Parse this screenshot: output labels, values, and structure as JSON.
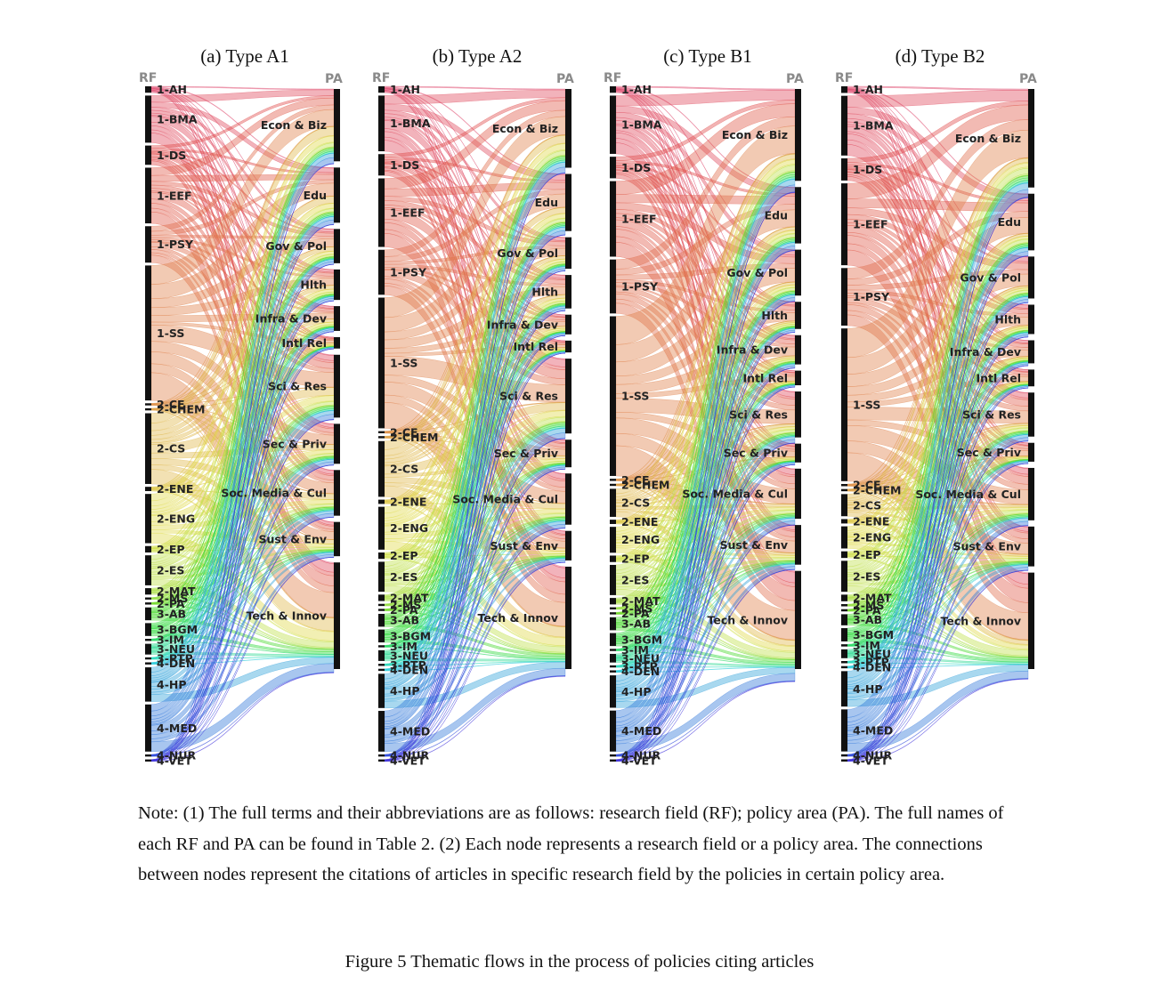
{
  "chart_data": [
    {
      "type": "sankey",
      "title": "(a) Type A1",
      "source_axis": "RF",
      "target_axis": "PA",
      "sources": [
        {
          "label": "1-AH",
          "size": 3
        },
        {
          "label": "1-BMA",
          "size": 22
        },
        {
          "label": "1-DS",
          "size": 9
        },
        {
          "label": "1-EEF",
          "size": 26
        },
        {
          "label": "1-PSY",
          "size": 17
        },
        {
          "label": "1-SS",
          "size": 63
        },
        {
          "label": "2-CE",
          "size": 1
        },
        {
          "label": "2-CHEM",
          "size": 1
        },
        {
          "label": "2-CS",
          "size": 33
        },
        {
          "label": "2-ENE",
          "size": 2
        },
        {
          "label": "2-ENG",
          "size": 23
        },
        {
          "label": "2-EP",
          "size": 3
        },
        {
          "label": "2-ES",
          "size": 14
        },
        {
          "label": "2-MAT",
          "size": 3
        },
        {
          "label": "2-MS",
          "size": 1
        },
        {
          "label": "2-PA",
          "size": 1
        },
        {
          "label": "3-AB",
          "size": 6
        },
        {
          "label": "3-BGM",
          "size": 6
        },
        {
          "label": "3-IM",
          "size": 1
        },
        {
          "label": "3-NEU",
          "size": 5
        },
        {
          "label": "3-PTP",
          "size": 1
        },
        {
          "label": "4-DEN",
          "size": 1
        },
        {
          "label": "4-HP",
          "size": 16
        },
        {
          "label": "4-MED",
          "size": 22
        },
        {
          "label": "4-NUR",
          "size": 1
        },
        {
          "label": "4-VET",
          "size": 1
        }
      ],
      "targets": [
        {
          "label": "Econ & Biz",
          "size": 38
        },
        {
          "label": "Edu",
          "size": 29
        },
        {
          "label": "Gov & Pol",
          "size": 18
        },
        {
          "label": "Hlth",
          "size": 16
        },
        {
          "label": "Infra & Dev",
          "size": 13
        },
        {
          "label": "Intl Rel",
          "size": 6
        },
        {
          "label": "Sci & Res",
          "size": 33
        },
        {
          "label": "Sec & Priv",
          "size": 21
        },
        {
          "label": "Soc. Media & Cul",
          "size": 24
        },
        {
          "label": "Sust & Env",
          "size": 18
        },
        {
          "label": "Tech & Innov",
          "size": 56
        }
      ]
    },
    {
      "type": "sankey",
      "title": "(b) Type A2",
      "source_axis": "RF",
      "target_axis": "PA",
      "sources": [
        {
          "label": "1-AH",
          "size": 3
        },
        {
          "label": "1-BMA",
          "size": 26
        },
        {
          "label": "1-DS",
          "size": 10
        },
        {
          "label": "1-EEF",
          "size": 32
        },
        {
          "label": "1-PSY",
          "size": 21
        },
        {
          "label": "1-SS",
          "size": 61
        },
        {
          "label": "2-CE",
          "size": 1
        },
        {
          "label": "2-CHEM",
          "size": 1
        },
        {
          "label": "2-CS",
          "size": 26
        },
        {
          "label": "2-ENE",
          "size": 2
        },
        {
          "label": "2-ENG",
          "size": 20
        },
        {
          "label": "2-EP",
          "size": 3
        },
        {
          "label": "2-ES",
          "size": 14
        },
        {
          "label": "2-MAT",
          "size": 3
        },
        {
          "label": "2-MS",
          "size": 1
        },
        {
          "label": "2-PA",
          "size": 1
        },
        {
          "label": "3-AB",
          "size": 6
        },
        {
          "label": "3-BGM",
          "size": 6
        },
        {
          "label": "3-IM",
          "size": 1
        },
        {
          "label": "3-NEU",
          "size": 5
        },
        {
          "label": "3-PTP",
          "size": 1
        },
        {
          "label": "4-DEN",
          "size": 1
        },
        {
          "label": "4-HP",
          "size": 16
        },
        {
          "label": "4-MED",
          "size": 19
        },
        {
          "label": "4-NUR",
          "size": 1
        },
        {
          "label": "4-VET",
          "size": 1
        }
      ],
      "targets": [
        {
          "label": "Econ & Biz",
          "size": 40
        },
        {
          "label": "Edu",
          "size": 29
        },
        {
          "label": "Gov & Pol",
          "size": 16
        },
        {
          "label": "Hlth",
          "size": 17
        },
        {
          "label": "Infra & Dev",
          "size": 10
        },
        {
          "label": "Intl Rel",
          "size": 6
        },
        {
          "label": "Sci & Res",
          "size": 38
        },
        {
          "label": "Sec & Priv",
          "size": 14
        },
        {
          "label": "Soc. Media & Cul",
          "size": 26
        },
        {
          "label": "Sust & Env",
          "size": 15
        },
        {
          "label": "Tech & Innov",
          "size": 52
        }
      ]
    },
    {
      "type": "sankey",
      "title": "(c) Type B1",
      "source_axis": "RF",
      "target_axis": "PA",
      "sources": [
        {
          "label": "1-AH",
          "size": 3
        },
        {
          "label": "1-BMA",
          "size": 27
        },
        {
          "label": "1-DS",
          "size": 10
        },
        {
          "label": "1-EEF",
          "size": 35
        },
        {
          "label": "1-PSY",
          "size": 25
        },
        {
          "label": "1-SS",
          "size": 74
        },
        {
          "label": "2-CE",
          "size": 1
        },
        {
          "label": "2-CHEM",
          "size": 1
        },
        {
          "label": "2-CS",
          "size": 13
        },
        {
          "label": "2-ENE",
          "size": 2
        },
        {
          "label": "2-ENG",
          "size": 12
        },
        {
          "label": "2-EP",
          "size": 3
        },
        {
          "label": "2-ES",
          "size": 14
        },
        {
          "label": "2-MAT",
          "size": 3
        },
        {
          "label": "2-MS",
          "size": 1
        },
        {
          "label": "2-PA",
          "size": 1
        },
        {
          "label": "3-AB",
          "size": 6
        },
        {
          "label": "3-BGM",
          "size": 6
        },
        {
          "label": "3-IM",
          "size": 1
        },
        {
          "label": "3-NEU",
          "size": 4
        },
        {
          "label": "3-PTP",
          "size": 1
        },
        {
          "label": "4-DEN",
          "size": 1
        },
        {
          "label": "4-HP",
          "size": 15
        },
        {
          "label": "4-MED",
          "size": 19
        },
        {
          "label": "4-NUR",
          "size": 1
        },
        {
          "label": "4-VET",
          "size": 1
        }
      ],
      "targets": [
        {
          "label": "Econ & Biz",
          "size": 44
        },
        {
          "label": "Edu",
          "size": 27
        },
        {
          "label": "Gov & Pol",
          "size": 22
        },
        {
          "label": "Hlth",
          "size": 13
        },
        {
          "label": "Infra & Dev",
          "size": 14
        },
        {
          "label": "Intl Rel",
          "size": 7
        },
        {
          "label": "Sci & Res",
          "size": 22
        },
        {
          "label": "Sec & Priv",
          "size": 9
        },
        {
          "label": "Soc. Media & Cul",
          "size": 24
        },
        {
          "label": "Sust & Env",
          "size": 19
        },
        {
          "label": "Tech & Innov",
          "size": 47
        }
      ]
    },
    {
      "type": "sankey",
      "title": "(d) Type B2",
      "source_axis": "RF",
      "target_axis": "PA",
      "sources": [
        {
          "label": "1-AH",
          "size": 3
        },
        {
          "label": "1-BMA",
          "size": 27
        },
        {
          "label": "1-DS",
          "size": 10
        },
        {
          "label": "1-EEF",
          "size": 37
        },
        {
          "label": "1-PSY",
          "size": 26
        },
        {
          "label": "1-SS",
          "size": 69
        },
        {
          "label": "2-CE",
          "size": 1
        },
        {
          "label": "2-CHEM",
          "size": 1
        },
        {
          "label": "2-CS",
          "size": 10
        },
        {
          "label": "2-ENE",
          "size": 2
        },
        {
          "label": "2-ENG",
          "size": 10
        },
        {
          "label": "2-EP",
          "size": 3
        },
        {
          "label": "2-ES",
          "size": 14
        },
        {
          "label": "2-MAT",
          "size": 3
        },
        {
          "label": "2-MS",
          "size": 1
        },
        {
          "label": "2-PA",
          "size": 1
        },
        {
          "label": "3-AB",
          "size": 5
        },
        {
          "label": "3-BGM",
          "size": 6
        },
        {
          "label": "3-IM",
          "size": 1
        },
        {
          "label": "3-NEU",
          "size": 4
        },
        {
          "label": "3-PTP",
          "size": 1
        },
        {
          "label": "4-DEN",
          "size": 1
        },
        {
          "label": "4-HP",
          "size": 16
        },
        {
          "label": "4-MED",
          "size": 19
        },
        {
          "label": "4-NUR",
          "size": 1
        },
        {
          "label": "4-VET",
          "size": 1
        }
      ],
      "targets": [
        {
          "label": "Econ & Biz",
          "size": 47
        },
        {
          "label": "Edu",
          "size": 27
        },
        {
          "label": "Gov & Pol",
          "size": 20
        },
        {
          "label": "Hlth",
          "size": 14
        },
        {
          "label": "Infra & Dev",
          "size": 11
        },
        {
          "label": "Intl Rel",
          "size": 8
        },
        {
          "label": "Sci & Res",
          "size": 21
        },
        {
          "label": "Sec & Priv",
          "size": 9
        },
        {
          "label": "Soc. Media & Cul",
          "size": 25
        },
        {
          "label": "Sust & Env",
          "size": 19
        },
        {
          "label": "Tech & Innov",
          "size": 46
        }
      ]
    }
  ],
  "note": "Note: (1) The full terms and their abbreviations are as follows: research field (RF); policy area (PA). The full names of each RF and PA can be found in Table 2. (2) Each node represents a research field or a policy area. The connections between nodes represent the citations of articles in specific research field by the policies in certain policy area.",
  "caption": "Figure 5 Thematic flows in the process of policies citing articles"
}
